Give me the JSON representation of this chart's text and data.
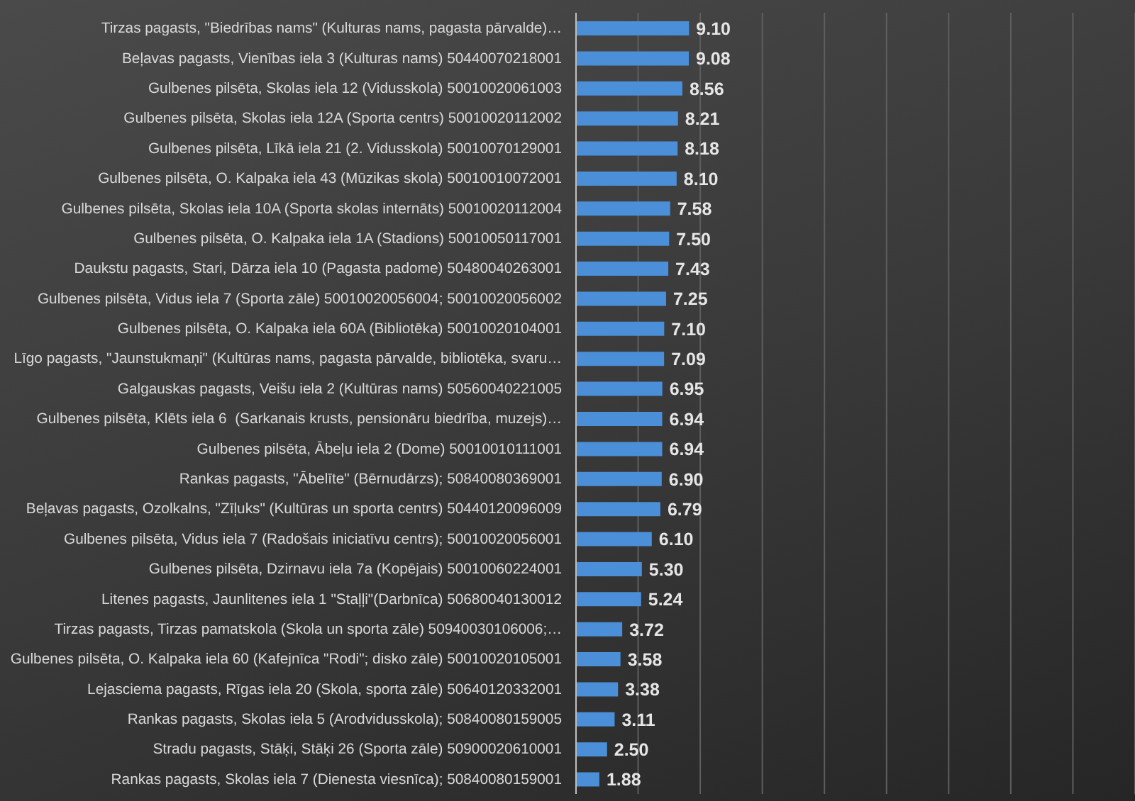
{
  "chart_data": {
    "type": "bar",
    "orientation": "horizontal",
    "categories": [
      "Tirzas pagasts, \"Biedrības nams\" (Kulturas nams, pagasta pārvalde)…",
      "Beļavas pagasts, Vienības iela 3 (Kulturas nams) 50440070218001",
      "Gulbenes pilsēta, Skolas iela 12 (Vidusskola) 50010020061003",
      "Gulbenes pilsēta, Skolas iela 12A (Sporta centrs) 50010020112002",
      "Gulbenes pilsēta, Līkā iela 21 (2. Vidusskola) 50010070129001",
      "Gulbenes pilsēta, O. Kalpaka iela 43 (Mūzikas skola) 50010010072001",
      "Gulbenes pilsēta, Skolas iela 10A (Sporta skolas internāts) 50010020112004",
      "Gulbenes pilsēta, O. Kalpaka iela 1A (Stadions) 50010050117001",
      "Daukstu pagasts, Stari, Dārza iela 10 (Pagasta padome) 50480040263001",
      "Gulbenes pilsēta, Vidus iela 7 (Sporta zāle) 50010020056004; 50010020056002",
      "Gulbenes pilsēta, O. Kalpaka iela 60A (Bibliotēka) 50010020104001",
      "Līgo pagasts, \"Jaunstukmaņi\" (Kultūras nams, pagasta pārvalde, bibliotēka, svaru…",
      "Galgauskas pagasts, Veišu iela 2 (Kultūras nams) 50560040221005",
      "Gulbenes pilsēta, Klēts iela 6  (Sarkanais krusts, pensionāru biedrība, muzejs)…",
      "Gulbenes pilsēta, Ābeļu iela 2 (Dome) 50010010111001",
      "Rankas pagasts, \"Ābelīte\" (Bērnudārzs); 50840080369001",
      "Beļavas pagasts, Ozolkalns, \"Zīļuks\" (Kultūras un sporta centrs) 50440120096009",
      "Gulbenes pilsēta, Vidus iela 7 (Radošais iniciatīvu centrs); 50010020056001",
      "Gulbenes pilsēta, Dzirnavu iela 7a (Kopējais) 50010060224001",
      "Litenes pagasts, Jaunlitenes iela 1 \"Staļļi\"(Darbnīca) 50680040130012",
      "Tirzas pagasts, Tirzas pamatskola (Skola un sporta zāle) 50940030106006;…",
      "Gulbenes pilsēta, O. Kalpaka iela 60 (Kafejnīca \"Rodi\"; disko zāle) 50010020105001",
      "Lejasciema pagasts, Rīgas iela 20 (Skola, sporta zāle) 50640120332001",
      "Rankas pagasts, Skolas iela 5 (Arodvidusskola); 50840080159005",
      "Stradu pagasts, Stāķi, Stāķi 26 (Sporta zāle) 50900020610001",
      "Rankas pagasts, Skolas iela 7 (Dienesta viesnīca); 50840080159001"
    ],
    "values": [
      9.1,
      9.08,
      8.56,
      8.21,
      8.18,
      8.1,
      7.58,
      7.5,
      7.43,
      7.25,
      7.1,
      7.09,
      6.95,
      6.94,
      6.94,
      6.9,
      6.79,
      6.1,
      5.3,
      5.24,
      3.72,
      3.58,
      3.38,
      3.11,
      2.5,
      1.88
    ],
    "value_labels": [
      "9.10",
      "9.08",
      "8.56",
      "8.21",
      "8.18",
      "8.10",
      "7.58",
      "7.50",
      "7.43",
      "7.25",
      "7.10",
      "7.09",
      "6.95",
      "6.94",
      "6.94",
      "6.90",
      "6.79",
      "6.10",
      "5.30",
      "5.24",
      "3.72",
      "3.58",
      "3.38",
      "3.11",
      "2.50",
      "1.88"
    ],
    "color": "#4a8fd8",
    "xlim": [
      0,
      45
    ],
    "tick_labels": "y",
    "grid": "x"
  }
}
